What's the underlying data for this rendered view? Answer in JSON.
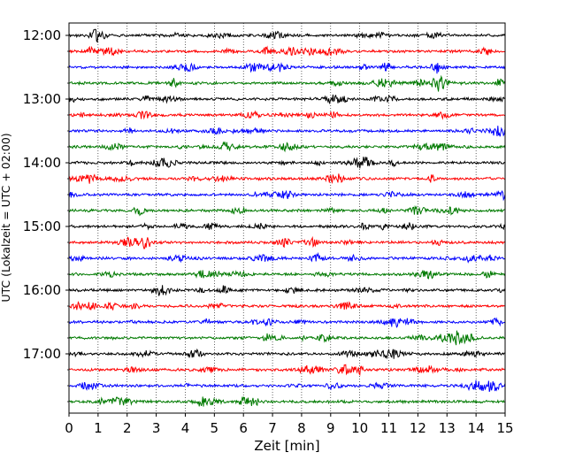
{
  "chart_data": {
    "type": "line",
    "title": "",
    "xlabel": "Zeit  [min]",
    "ylabel": "UTC (Lokalzeit = UTC + 02:00)",
    "xlim": [
      0,
      15
    ],
    "x_ticks": [
      0,
      1,
      2,
      3,
      4,
      5,
      6,
      7,
      8,
      9,
      10,
      11,
      12,
      13,
      14,
      15
    ],
    "x_tick_labels": [
      "0",
      "1",
      "2",
      "3",
      "4",
      "5",
      "6",
      "7",
      "8",
      "9",
      "10",
      "11",
      "12",
      "13",
      "14",
      "15"
    ],
    "y_tick_labels": [
      {
        "row": 0,
        "label": "12:00"
      },
      {
        "row": 4,
        "label": "13:00"
      },
      {
        "row": 8,
        "label": "14:00"
      },
      {
        "row": 12,
        "label": "15:00"
      },
      {
        "row": 16,
        "label": "16:00"
      },
      {
        "row": 20,
        "label": "17:00"
      }
    ],
    "grid": "vertical dotted",
    "colors": [
      "#000000",
      "#ff0000",
      "#0000ff",
      "#007a00"
    ],
    "series": [
      {
        "start": "12:00",
        "color": "#000000"
      },
      {
        "start": "12:15",
        "color": "#ff0000"
      },
      {
        "start": "12:30",
        "color": "#0000ff"
      },
      {
        "start": "12:45",
        "color": "#007a00"
      },
      {
        "start": "13:00",
        "color": "#000000"
      },
      {
        "start": "13:15",
        "color": "#ff0000"
      },
      {
        "start": "13:30",
        "color": "#0000ff"
      },
      {
        "start": "13:45",
        "color": "#007a00"
      },
      {
        "start": "14:00",
        "color": "#000000"
      },
      {
        "start": "14:15",
        "color": "#ff0000"
      },
      {
        "start": "14:30",
        "color": "#0000ff"
      },
      {
        "start": "14:45",
        "color": "#007a00"
      },
      {
        "start": "15:00",
        "color": "#000000"
      },
      {
        "start": "15:15",
        "color": "#ff0000"
      },
      {
        "start": "15:30",
        "color": "#0000ff"
      },
      {
        "start": "15:45",
        "color": "#007a00"
      },
      {
        "start": "16:00",
        "color": "#000000"
      },
      {
        "start": "16:15",
        "color": "#ff0000"
      },
      {
        "start": "16:30",
        "color": "#0000ff"
      },
      {
        "start": "16:45",
        "color": "#007a00"
      },
      {
        "start": "17:00",
        "color": "#000000"
      },
      {
        "start": "17:15",
        "color": "#ff0000"
      },
      {
        "start": "17:30",
        "color": "#0000ff"
      },
      {
        "start": "17:45",
        "color": "#007a00"
      }
    ]
  }
}
